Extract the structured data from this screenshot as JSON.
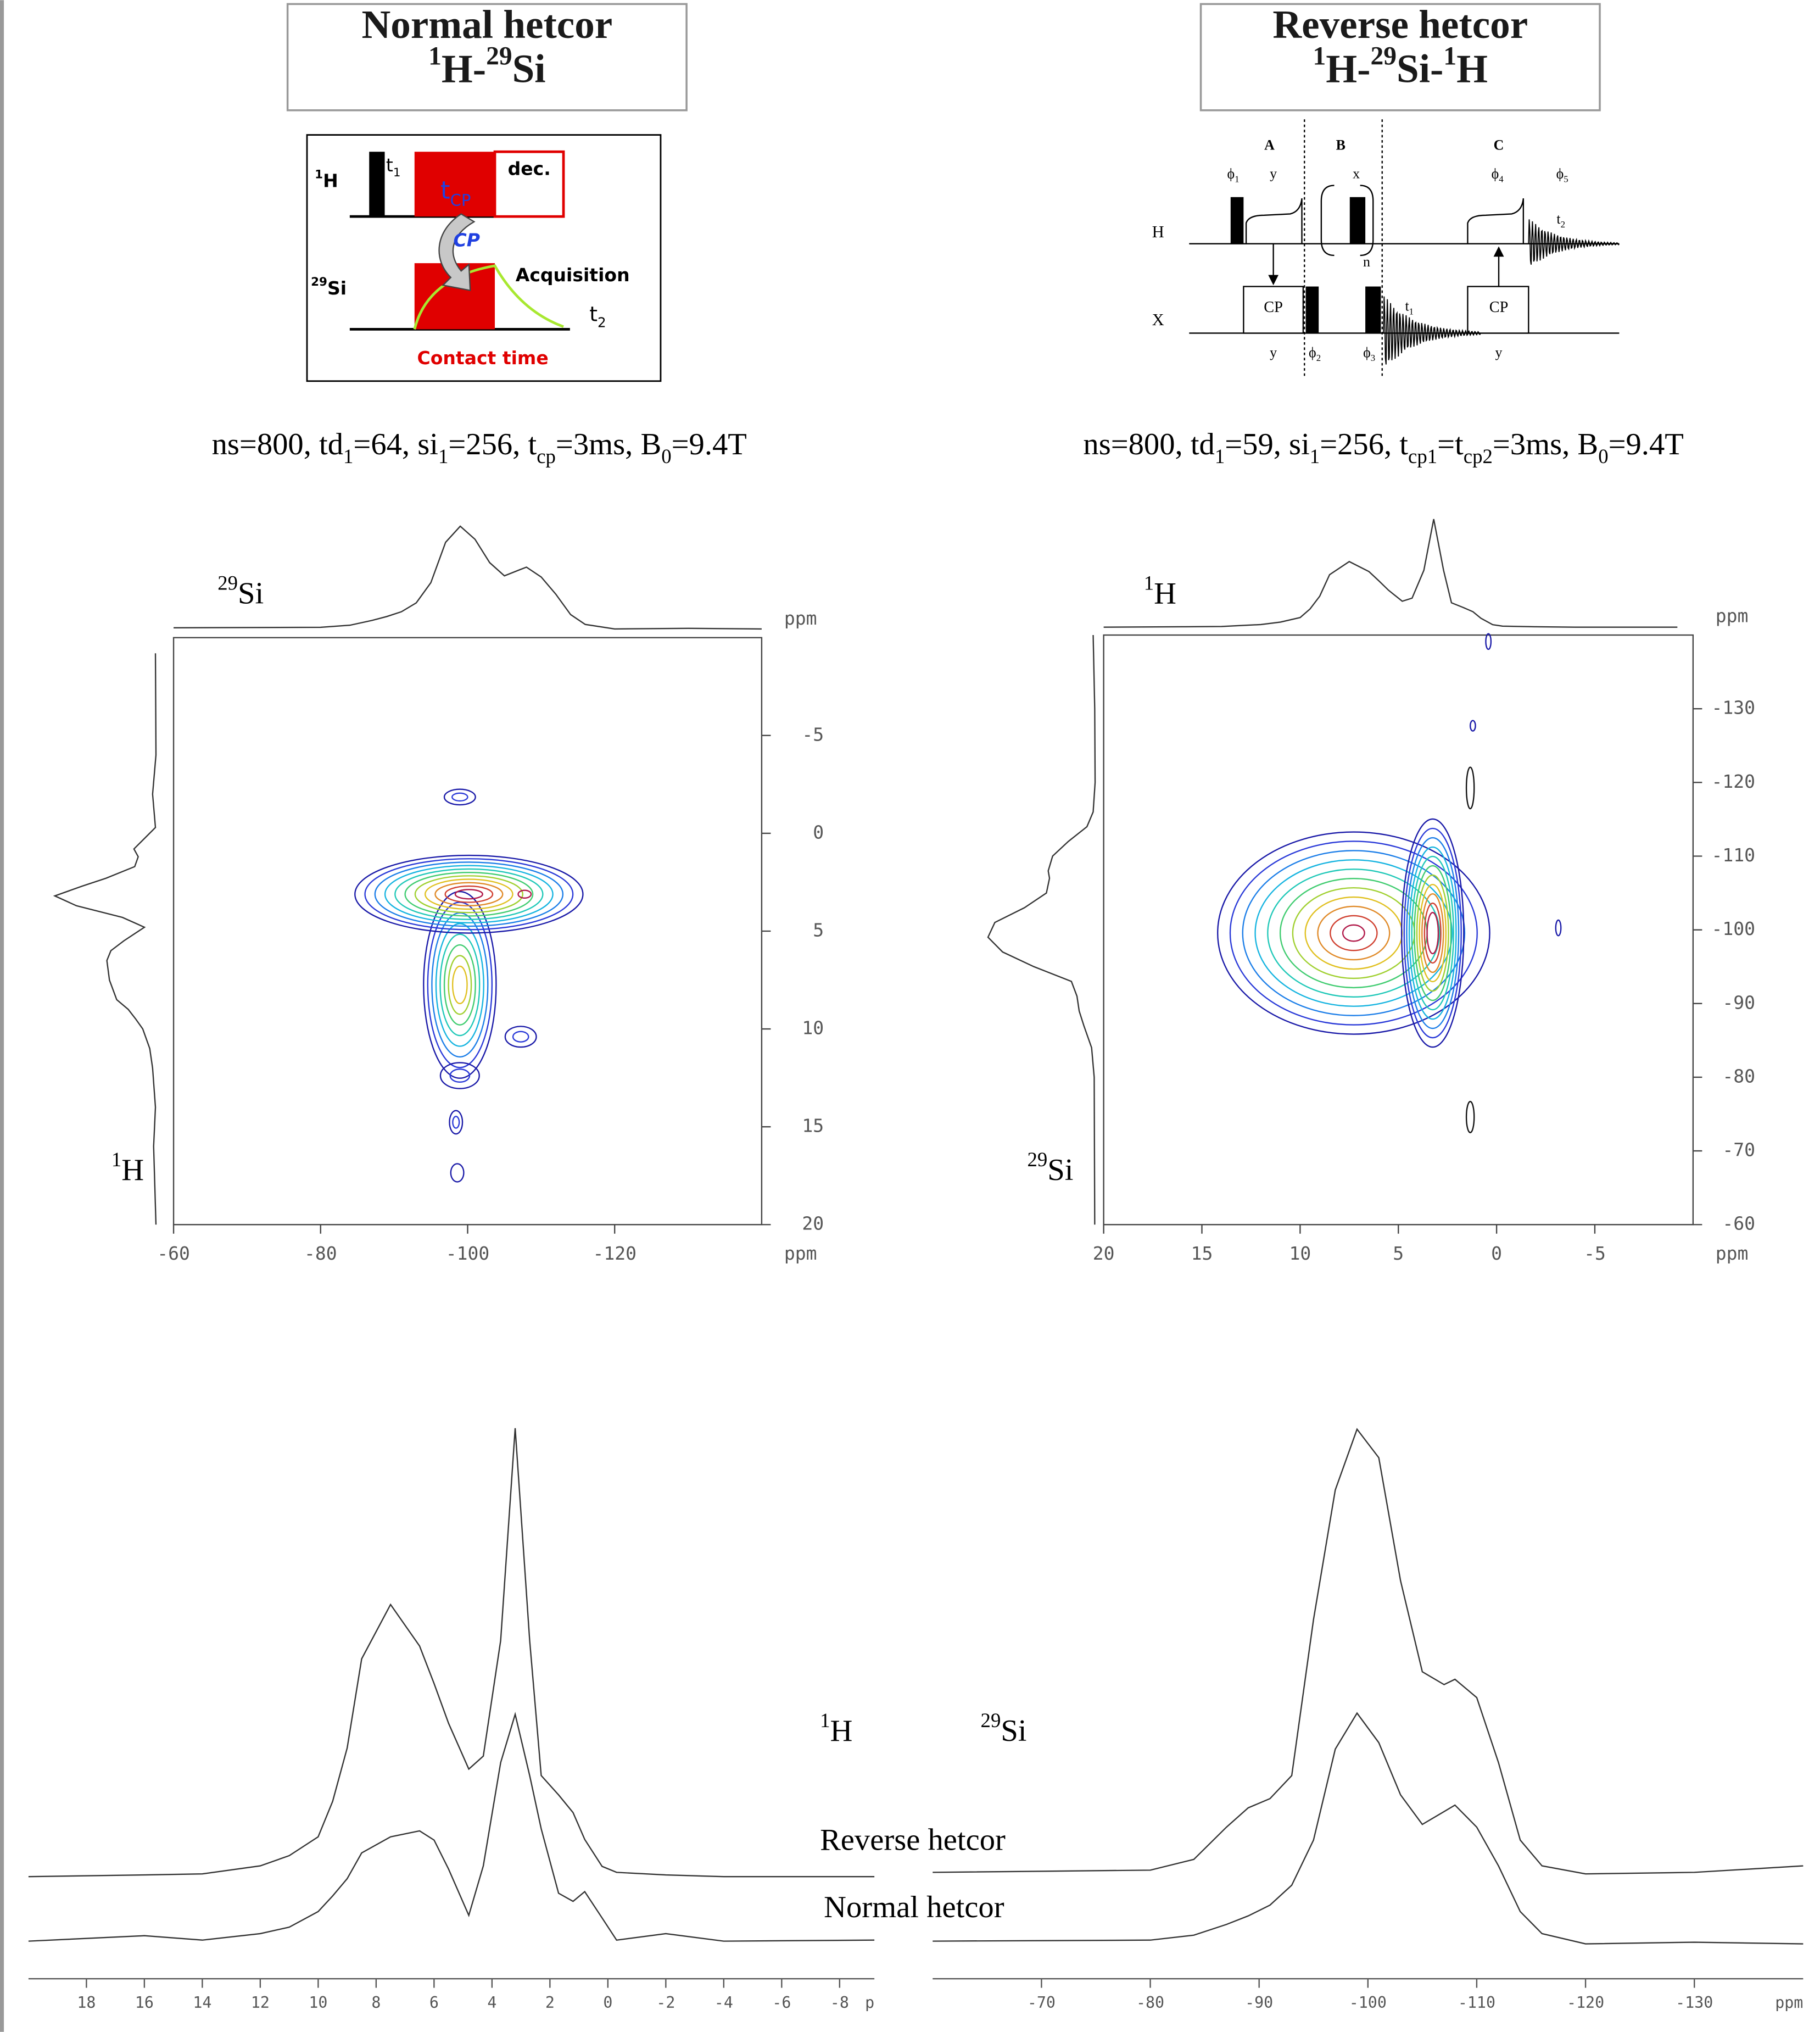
{
  "normal": {
    "title": "Normal hetcor",
    "nuclei": [
      {
        "t": "1",
        "sup": true
      },
      {
        "t": "H-"
      },
      {
        "t": "29",
        "sup": true
      },
      {
        "t": "Si"
      }
    ],
    "pulse_sequence": {
      "h_channel": [
        {
          "t": "1",
          "sup": true
        },
        {
          "t": "H"
        }
      ],
      "t1": [
        {
          "t": "t"
        },
        {
          "t": "1",
          "sub": true
        }
      ],
      "tcp": [
        {
          "t": "t"
        },
        {
          "t": "CP",
          "sub": true
        }
      ],
      "decoupling": "dec.",
      "cp": "CP",
      "si_channel": [
        {
          "t": "29",
          "sup": true
        },
        {
          "t": "Si"
        }
      ],
      "acquisition": "Acquisition",
      "t2": [
        {
          "t": "t"
        },
        {
          "t": "2",
          "sub": true
        }
      ],
      "contact_time": "Contact time"
    },
    "parameters": [
      {
        "t": "ns=800, td"
      },
      {
        "t": "1",
        "sub": true
      },
      {
        "t": "=64, si"
      },
      {
        "t": "1",
        "sub": true
      },
      {
        "t": "=256, t"
      },
      {
        "t": "cp",
        "sub": true
      },
      {
        "t": "=3ms, B"
      },
      {
        "t": "0",
        "sub": true
      },
      {
        "t": "=9.4T"
      }
    ],
    "plot": {
      "top_label": [
        {
          "t": "29",
          "sup": true
        },
        {
          "t": "Si"
        }
      ],
      "side_label": [
        {
          "t": "1",
          "sup": true
        },
        {
          "t": "H"
        }
      ],
      "x_unit": "ppm",
      "y_unit": "ppm",
      "xlim": [
        -60,
        -140
      ],
      "xticks": [
        -60,
        -80,
        -100,
        -120
      ],
      "ylim": [
        -10,
        20
      ],
      "yticks": [
        -5,
        0,
        5,
        10,
        15,
        20
      ]
    }
  },
  "reverse": {
    "title": "Reverse hetcor",
    "nuclei": [
      {
        "t": "1",
        "sup": true
      },
      {
        "t": "H-"
      },
      {
        "t": "29",
        "sup": true
      },
      {
        "t": "Si-"
      },
      {
        "t": "1",
        "sup": true
      },
      {
        "t": "H"
      }
    ],
    "pulse_sequence": {
      "block_a": "A",
      "block_b": "B",
      "block_c": "C",
      "phi1": [
        {
          "t": "ϕ"
        },
        {
          "t": "1",
          "sub": true
        }
      ],
      "spin_lock_a": "y",
      "pulse_b": "x",
      "phi4": [
        {
          "t": "ϕ"
        },
        {
          "t": "4",
          "sub": true
        }
      ],
      "phi5": [
        {
          "t": "ϕ"
        },
        {
          "t": "5",
          "sub": true
        }
      ],
      "t2": [
        {
          "t": "t"
        },
        {
          "t": "2",
          "sub": true
        }
      ],
      "h_channel": "H",
      "n": "n",
      "x_channel": "X",
      "cp_a": "CP",
      "cp_c": "CP",
      "t1": [
        {
          "t": "t"
        },
        {
          "t": "1",
          "sub": true
        }
      ],
      "phase_a": "y",
      "phi2": [
        {
          "t": "ϕ"
        },
        {
          "t": "2",
          "sub": true
        }
      ],
      "phi3": [
        {
          "t": "ϕ"
        },
        {
          "t": "3",
          "sub": true
        }
      ],
      "phase_c": "y"
    },
    "parameters": [
      {
        "t": "ns=800, td"
      },
      {
        "t": "1",
        "sub": true
      },
      {
        "t": "=59, si"
      },
      {
        "t": "1",
        "sub": true
      },
      {
        "t": "=256, t"
      },
      {
        "t": "cp1",
        "sub": true
      },
      {
        "t": "=t"
      },
      {
        "t": "cp2",
        "sub": true
      },
      {
        "t": "=3ms, B"
      },
      {
        "t": "0",
        "sub": true
      },
      {
        "t": "=9.4T"
      }
    ],
    "plot": {
      "top_label": [
        {
          "t": "1",
          "sup": true
        },
        {
          "t": "H"
        }
      ],
      "side_label": [
        {
          "t": "29",
          "sup": true
        },
        {
          "t": "Si"
        }
      ],
      "x_unit": "ppm",
      "y_unit": "ppm",
      "xlim": [
        20,
        -10
      ],
      "xticks": [
        20,
        15,
        10,
        5,
        0,
        -5
      ],
      "ylim": [
        -140,
        -60
      ],
      "yticks": [
        -130,
        -120,
        -110,
        -100,
        -90,
        -80,
        -70,
        -60
      ]
    }
  },
  "chart_data": [
    {
      "type": "line",
      "title": [
        {
          "t": "1",
          "sup": true
        },
        {
          "t": "H"
        }
      ],
      "x_unit": "p",
      "x": [
        20,
        16,
        14,
        12,
        11,
        10,
        9.5,
        9,
        8.5,
        7.5,
        6.5,
        6,
        5.5,
        4.8,
        4.3,
        3.7,
        3.2,
        2.7,
        2.3,
        1.7,
        1.2,
        0.8,
        0.2,
        -0.3,
        -2,
        -4,
        -9.2
      ],
      "xlim": [
        20,
        -9.2
      ],
      "xticks": [
        18,
        16,
        14,
        12,
        10,
        8,
        6,
        4,
        2,
        0,
        -2,
        -4,
        -6,
        -8
      ],
      "ylim": [
        0,
        100
      ],
      "series": [
        {
          "name": "Reverse hetcor",
          "color": "#333333",
          "values": [
            16.1,
            16.4,
            16.6,
            18.1,
            20.0,
            23.5,
            30.1,
            40.0,
            56.6,
            66.7,
            59.0,
            52.0,
            44.6,
            36.1,
            38.5,
            60.0,
            99.5,
            60.0,
            34.9,
            31.3,
            28.0,
            23.0,
            18.0,
            16.9,
            16.4,
            16.1,
            16.1
          ]
        },
        {
          "name": "Normal hetcor",
          "color": "#333333",
          "values": [
            4.1,
            5.1,
            4.3,
            5.5,
            6.7,
            9.6,
            12.5,
            15.7,
            20.5,
            23.5,
            24.6,
            22.9,
            17.5,
            8.9,
            18.1,
            37.3,
            46.3,
            34.9,
            25.0,
            13.0,
            11.5,
            13.3,
            8.4,
            4.3,
            5.5,
            4.1,
            4.3
          ]
        }
      ]
    },
    {
      "type": "line",
      "title": [
        {
          "t": "29",
          "sup": true
        },
        {
          "t": "Si"
        }
      ],
      "x_unit": "ppm",
      "x": [
        -60,
        -80,
        -84,
        -87,
        -89,
        -91,
        -93,
        -95,
        -97,
        -99,
        -101,
        -103,
        -105,
        -107,
        -108,
        -110,
        -112,
        -114,
        -116,
        -120,
        -130,
        -140
      ],
      "xlim": [
        -60,
        -140
      ],
      "xticks": [
        -70,
        -80,
        -90,
        -100,
        -110,
        -120,
        -130
      ],
      "ylim": [
        0,
        100
      ],
      "series": [
        {
          "color": "#333333",
          "values": [
            16.9,
            17.3,
            19.3,
            25.3,
            28.9,
            30.6,
            34.9,
            63.9,
            88.0,
            99.3,
            94.0,
            71.1,
            54.2,
            51.8,
            52.8,
            49.4,
            37.3,
            22.9,
            18.1,
            16.6,
            16.9,
            18.1
          ]
        },
        {
          "color": "#333333",
          "values": [
            4.1,
            4.3,
            5.2,
            7.2,
            8.8,
            10.8,
            14.5,
            22.9,
            39.8,
            46.5,
            41.0,
            31.3,
            25.8,
            28.2,
            29.4,
            25.3,
            18.1,
            9.6,
            5.5,
            3.6,
            3.9,
            3.6
          ]
        }
      ]
    }
  ]
}
